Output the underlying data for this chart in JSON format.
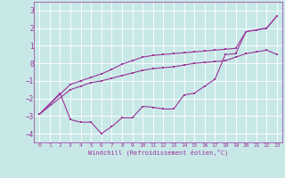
{
  "bg_color": "#c8e8e8",
  "grid_color": "#ffffff",
  "line_color": "#993399",
  "xlim": [
    -0.5,
    23.5
  ],
  "ylim": [
    -4.5,
    3.5
  ],
  "xticks": [
    0,
    1,
    2,
    3,
    4,
    5,
    6,
    7,
    8,
    9,
    10,
    11,
    12,
    13,
    14,
    15,
    16,
    17,
    18,
    19,
    20,
    21,
    22,
    23
  ],
  "yticks": [
    -4,
    -3,
    -2,
    -1,
    0,
    1,
    2,
    3
  ],
  "xlabel": "Windchill (Refroidissement éolien,°C)",
  "line1_x": [
    0,
    1,
    2,
    3,
    4,
    5,
    6,
    7,
    8,
    9,
    10,
    11,
    12,
    13,
    14,
    15,
    16,
    17,
    18,
    19,
    20,
    21,
    22,
    23
  ],
  "line1_y": [
    -2.9,
    -2.3,
    -1.7,
    -3.2,
    -3.35,
    -3.35,
    -4.0,
    -3.6,
    -3.1,
    -3.1,
    -2.45,
    -2.5,
    -2.6,
    -2.6,
    -1.8,
    -1.7,
    -1.3,
    -0.9,
    0.5,
    0.55,
    1.8,
    1.9,
    2.0,
    2.7
  ],
  "line2_x": [
    0,
    3,
    4,
    5,
    6,
    7,
    8,
    9,
    10,
    11,
    12,
    13,
    14,
    15,
    16,
    17,
    18,
    19,
    20,
    21,
    22,
    23
  ],
  "line2_y": [
    -2.9,
    -1.5,
    -1.3,
    -1.1,
    -1.0,
    -0.85,
    -0.7,
    -0.55,
    -0.4,
    -0.3,
    -0.25,
    -0.2,
    -0.1,
    0.0,
    0.05,
    0.1,
    0.15,
    0.35,
    0.55,
    0.65,
    0.75,
    0.5
  ],
  "line3_x": [
    0,
    3,
    4,
    5,
    6,
    7,
    8,
    9,
    10,
    11,
    12,
    13,
    14,
    15,
    16,
    17,
    18,
    19,
    20,
    21,
    22,
    23
  ],
  "line3_y": [
    -2.9,
    -1.2,
    -1.0,
    -0.8,
    -0.6,
    -0.35,
    -0.05,
    0.15,
    0.35,
    0.45,
    0.5,
    0.55,
    0.6,
    0.65,
    0.7,
    0.75,
    0.8,
    0.85,
    1.8,
    1.9,
    2.0,
    2.7
  ]
}
